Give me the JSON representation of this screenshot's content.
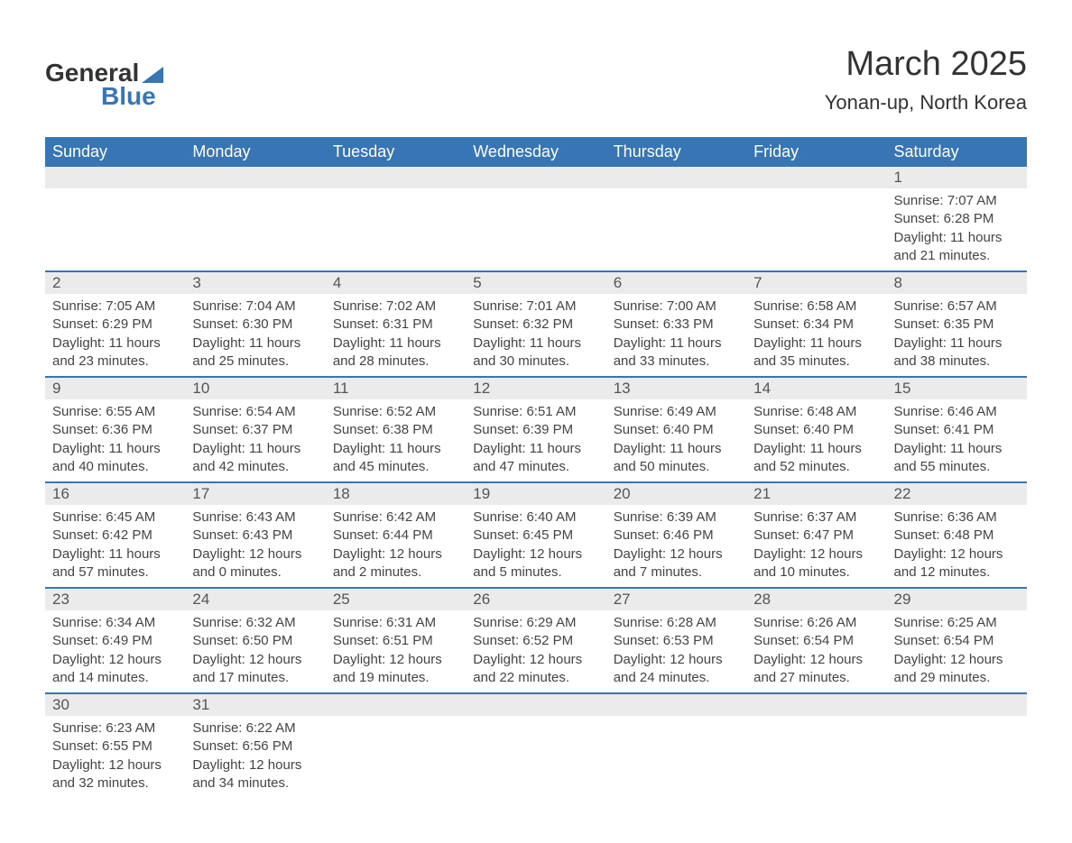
{
  "logo": {
    "text_general": "General",
    "text_blue": "Blue"
  },
  "title": "March 2025",
  "location": "Yonan-up, North Korea",
  "colors": {
    "header_bg": "#3875b4",
    "header_text": "#ffffff",
    "day_number_bg": "#ebebeb",
    "border": "#3875b4",
    "text": "#444444",
    "logo_blue": "#3875b4"
  },
  "day_headers": [
    "Sunday",
    "Monday",
    "Tuesday",
    "Wednesday",
    "Thursday",
    "Friday",
    "Saturday"
  ],
  "weeks": [
    [
      null,
      null,
      null,
      null,
      null,
      null,
      {
        "day": "1",
        "sunrise": "Sunrise: 7:07 AM",
        "sunset": "Sunset: 6:28 PM",
        "daylight1": "Daylight: 11 hours",
        "daylight2": "and 21 minutes."
      }
    ],
    [
      {
        "day": "2",
        "sunrise": "Sunrise: 7:05 AM",
        "sunset": "Sunset: 6:29 PM",
        "daylight1": "Daylight: 11 hours",
        "daylight2": "and 23 minutes."
      },
      {
        "day": "3",
        "sunrise": "Sunrise: 7:04 AM",
        "sunset": "Sunset: 6:30 PM",
        "daylight1": "Daylight: 11 hours",
        "daylight2": "and 25 minutes."
      },
      {
        "day": "4",
        "sunrise": "Sunrise: 7:02 AM",
        "sunset": "Sunset: 6:31 PM",
        "daylight1": "Daylight: 11 hours",
        "daylight2": "and 28 minutes."
      },
      {
        "day": "5",
        "sunrise": "Sunrise: 7:01 AM",
        "sunset": "Sunset: 6:32 PM",
        "daylight1": "Daylight: 11 hours",
        "daylight2": "and 30 minutes."
      },
      {
        "day": "6",
        "sunrise": "Sunrise: 7:00 AM",
        "sunset": "Sunset: 6:33 PM",
        "daylight1": "Daylight: 11 hours",
        "daylight2": "and 33 minutes."
      },
      {
        "day": "7",
        "sunrise": "Sunrise: 6:58 AM",
        "sunset": "Sunset: 6:34 PM",
        "daylight1": "Daylight: 11 hours",
        "daylight2": "and 35 minutes."
      },
      {
        "day": "8",
        "sunrise": "Sunrise: 6:57 AM",
        "sunset": "Sunset: 6:35 PM",
        "daylight1": "Daylight: 11 hours",
        "daylight2": "and 38 minutes."
      }
    ],
    [
      {
        "day": "9",
        "sunrise": "Sunrise: 6:55 AM",
        "sunset": "Sunset: 6:36 PM",
        "daylight1": "Daylight: 11 hours",
        "daylight2": "and 40 minutes."
      },
      {
        "day": "10",
        "sunrise": "Sunrise: 6:54 AM",
        "sunset": "Sunset: 6:37 PM",
        "daylight1": "Daylight: 11 hours",
        "daylight2": "and 42 minutes."
      },
      {
        "day": "11",
        "sunrise": "Sunrise: 6:52 AM",
        "sunset": "Sunset: 6:38 PM",
        "daylight1": "Daylight: 11 hours",
        "daylight2": "and 45 minutes."
      },
      {
        "day": "12",
        "sunrise": "Sunrise: 6:51 AM",
        "sunset": "Sunset: 6:39 PM",
        "daylight1": "Daylight: 11 hours",
        "daylight2": "and 47 minutes."
      },
      {
        "day": "13",
        "sunrise": "Sunrise: 6:49 AM",
        "sunset": "Sunset: 6:40 PM",
        "daylight1": "Daylight: 11 hours",
        "daylight2": "and 50 minutes."
      },
      {
        "day": "14",
        "sunrise": "Sunrise: 6:48 AM",
        "sunset": "Sunset: 6:40 PM",
        "daylight1": "Daylight: 11 hours",
        "daylight2": "and 52 minutes."
      },
      {
        "day": "15",
        "sunrise": "Sunrise: 6:46 AM",
        "sunset": "Sunset: 6:41 PM",
        "daylight1": "Daylight: 11 hours",
        "daylight2": "and 55 minutes."
      }
    ],
    [
      {
        "day": "16",
        "sunrise": "Sunrise: 6:45 AM",
        "sunset": "Sunset: 6:42 PM",
        "daylight1": "Daylight: 11 hours",
        "daylight2": "and 57 minutes."
      },
      {
        "day": "17",
        "sunrise": "Sunrise: 6:43 AM",
        "sunset": "Sunset: 6:43 PM",
        "daylight1": "Daylight: 12 hours",
        "daylight2": "and 0 minutes."
      },
      {
        "day": "18",
        "sunrise": "Sunrise: 6:42 AM",
        "sunset": "Sunset: 6:44 PM",
        "daylight1": "Daylight: 12 hours",
        "daylight2": "and 2 minutes."
      },
      {
        "day": "19",
        "sunrise": "Sunrise: 6:40 AM",
        "sunset": "Sunset: 6:45 PM",
        "daylight1": "Daylight: 12 hours",
        "daylight2": "and 5 minutes."
      },
      {
        "day": "20",
        "sunrise": "Sunrise: 6:39 AM",
        "sunset": "Sunset: 6:46 PM",
        "daylight1": "Daylight: 12 hours",
        "daylight2": "and 7 minutes."
      },
      {
        "day": "21",
        "sunrise": "Sunrise: 6:37 AM",
        "sunset": "Sunset: 6:47 PM",
        "daylight1": "Daylight: 12 hours",
        "daylight2": "and 10 minutes."
      },
      {
        "day": "22",
        "sunrise": "Sunrise: 6:36 AM",
        "sunset": "Sunset: 6:48 PM",
        "daylight1": "Daylight: 12 hours",
        "daylight2": "and 12 minutes."
      }
    ],
    [
      {
        "day": "23",
        "sunrise": "Sunrise: 6:34 AM",
        "sunset": "Sunset: 6:49 PM",
        "daylight1": "Daylight: 12 hours",
        "daylight2": "and 14 minutes."
      },
      {
        "day": "24",
        "sunrise": "Sunrise: 6:32 AM",
        "sunset": "Sunset: 6:50 PM",
        "daylight1": "Daylight: 12 hours",
        "daylight2": "and 17 minutes."
      },
      {
        "day": "25",
        "sunrise": "Sunrise: 6:31 AM",
        "sunset": "Sunset: 6:51 PM",
        "daylight1": "Daylight: 12 hours",
        "daylight2": "and 19 minutes."
      },
      {
        "day": "26",
        "sunrise": "Sunrise: 6:29 AM",
        "sunset": "Sunset: 6:52 PM",
        "daylight1": "Daylight: 12 hours",
        "daylight2": "and 22 minutes."
      },
      {
        "day": "27",
        "sunrise": "Sunrise: 6:28 AM",
        "sunset": "Sunset: 6:53 PM",
        "daylight1": "Daylight: 12 hours",
        "daylight2": "and 24 minutes."
      },
      {
        "day": "28",
        "sunrise": "Sunrise: 6:26 AM",
        "sunset": "Sunset: 6:54 PM",
        "daylight1": "Daylight: 12 hours",
        "daylight2": "and 27 minutes."
      },
      {
        "day": "29",
        "sunrise": "Sunrise: 6:25 AM",
        "sunset": "Sunset: 6:54 PM",
        "daylight1": "Daylight: 12 hours",
        "daylight2": "and 29 minutes."
      }
    ],
    [
      {
        "day": "30",
        "sunrise": "Sunrise: 6:23 AM",
        "sunset": "Sunset: 6:55 PM",
        "daylight1": "Daylight: 12 hours",
        "daylight2": "and 32 minutes."
      },
      {
        "day": "31",
        "sunrise": "Sunrise: 6:22 AM",
        "sunset": "Sunset: 6:56 PM",
        "daylight1": "Daylight: 12 hours",
        "daylight2": "and 34 minutes."
      },
      null,
      null,
      null,
      null,
      null
    ]
  ]
}
